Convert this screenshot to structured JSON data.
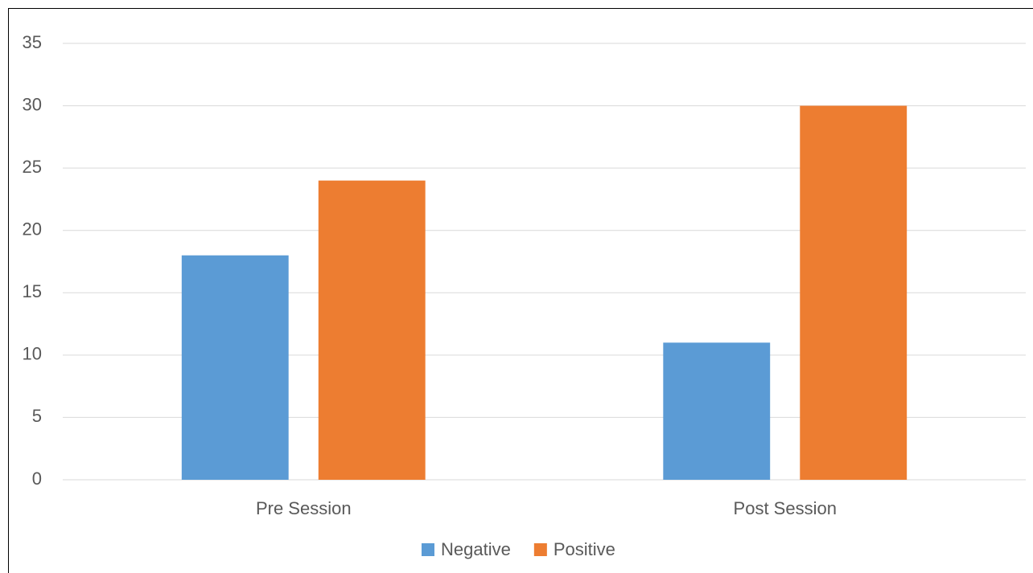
{
  "chart_data": {
    "type": "bar",
    "categories": [
      "Pre Session",
      "Post Session"
    ],
    "series": [
      {
        "name": "Negative",
        "color": "#5b9bd5",
        "values": [
          18,
          11
        ]
      },
      {
        "name": "Positive",
        "color": "#ed7d31",
        "values": [
          24,
          30
        ]
      }
    ],
    "ylim": [
      0,
      35
    ],
    "yticks": [
      0,
      5,
      10,
      15,
      20,
      25,
      30,
      35
    ],
    "grid": true,
    "legend": "bottom"
  }
}
